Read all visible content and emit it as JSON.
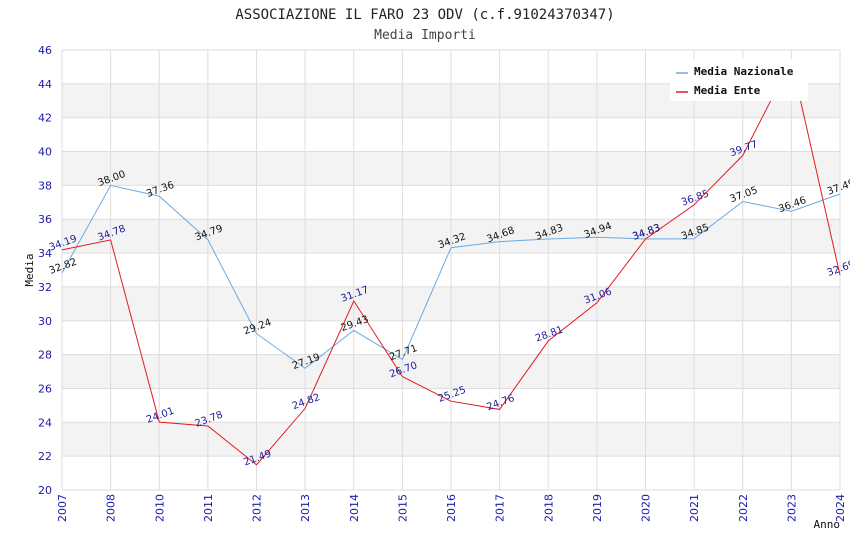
{
  "header": {
    "title": "ASSOCIAZIONE IL FARO 23 ODV (c.f.91024370347)",
    "subtitle": "Media Importi"
  },
  "chart_data": {
    "type": "line",
    "title": "ASSOCIAZIONE IL FARO 23 ODV (c.f.91024370347)",
    "subtitle": "Media Importi",
    "xlabel": "Anno",
    "ylabel": "Media",
    "categories": [
      "2007",
      "2008",
      "2010",
      "2011",
      "2012",
      "2013",
      "2014",
      "2015",
      "2016",
      "2017",
      "2018",
      "2019",
      "2020",
      "2021",
      "2022",
      "2023",
      "2024"
    ],
    "ylim": [
      20,
      46
    ],
    "yticks": [
      20,
      22,
      24,
      26,
      28,
      30,
      32,
      34,
      36,
      38,
      40,
      42,
      44,
      46
    ],
    "grid": true,
    "legend_position": "top-right",
    "series": [
      {
        "name": "Media Nazionale",
        "color": "#6aaae4",
        "values": [
          32.82,
          38.0,
          37.36,
          34.79,
          29.24,
          27.19,
          29.43,
          27.71,
          34.32,
          34.68,
          34.83,
          34.94,
          34.83,
          34.85,
          37.05,
          36.46,
          37.49
        ],
        "labels": [
          "32.82",
          "38.00",
          "37.36",
          "34.79",
          "29.24",
          "27.19",
          "29.43",
          "27.71",
          "34.32",
          "34.68",
          "34.83",
          "34.94",
          "34.83",
          "34.85",
          "37.05",
          "36.46",
          "37.49"
        ]
      },
      {
        "name": "Media Ente",
        "color": "#e31a1c",
        "values": [
          34.19,
          34.78,
          24.01,
          23.78,
          21.49,
          24.82,
          31.17,
          26.7,
          25.25,
          24.76,
          28.81,
          31.06,
          34.83,
          36.85,
          39.77,
          45.4,
          32.69
        ],
        "labels": [
          "34.19",
          "34.78",
          "24.01",
          "23.78",
          "21.49",
          "24.82",
          "31.17",
          "26.70",
          "25.25",
          "24.76",
          "28.81",
          "31.06",
          "34.83",
          "36.85",
          "39.77",
          "",
          "32.69"
        ]
      }
    ]
  }
}
